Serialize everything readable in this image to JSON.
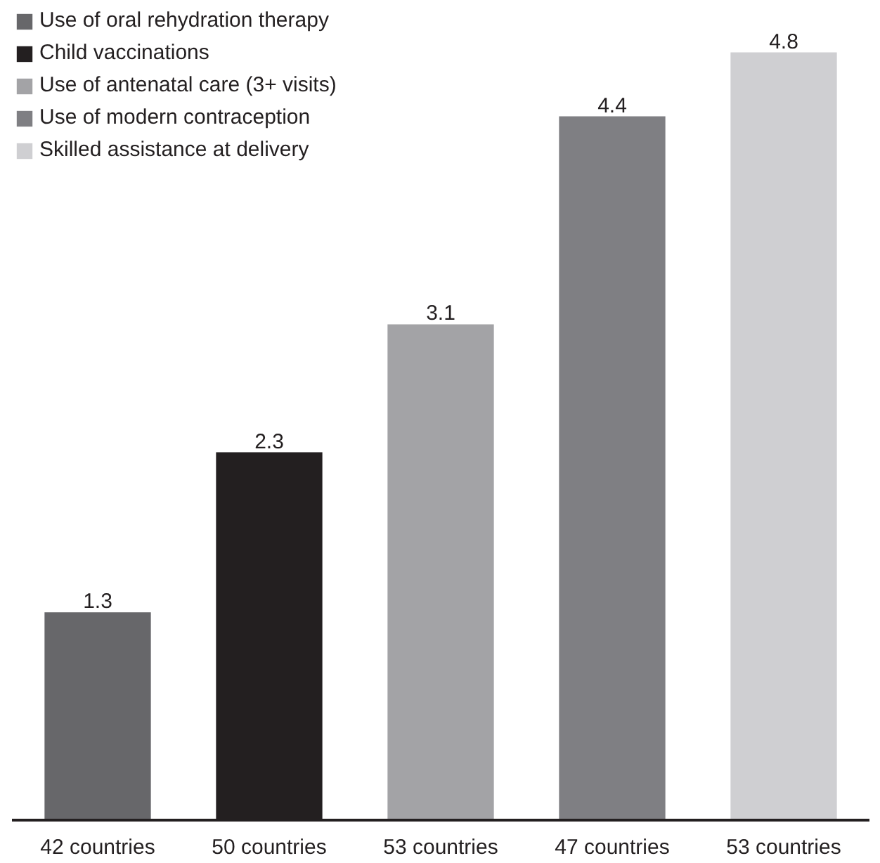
{
  "chart_data": {
    "type": "bar",
    "categories": [
      "42 countries",
      "50 countries",
      "53 countries",
      "47 countries",
      "53 countries"
    ],
    "series": [
      {
        "name": "Use of oral rehydration therapy",
        "color": "#67676a",
        "values": [
          1.3,
          null,
          null,
          null,
          null
        ]
      },
      {
        "name": "Child vaccinations",
        "color": "#231f20",
        "values": [
          null,
          2.3,
          null,
          null,
          null
        ]
      },
      {
        "name": "Use of antenatal care (3+ visits)",
        "color": "#a3a3a6",
        "values": [
          null,
          null,
          3.1,
          null,
          null
        ]
      },
      {
        "name": "Use of modern contraception",
        "color": "#7f7f83",
        "values": [
          null,
          null,
          null,
          4.4,
          null
        ]
      },
      {
        "name": "Skilled assistance at delivery",
        "color": "#cfcfd2",
        "values": [
          null,
          null,
          null,
          null,
          4.8
        ]
      }
    ],
    "data_labels": true,
    "legend": "top left"
  }
}
